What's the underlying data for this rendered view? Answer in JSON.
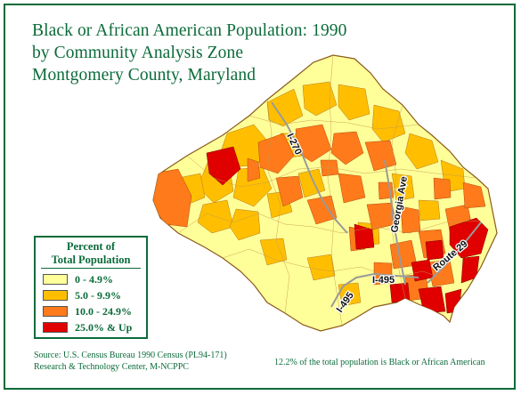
{
  "title": {
    "line1": "Black or African American Population: 1990",
    "line2": "by Community Analysis Zone",
    "line3": "Montgomery County, Maryland"
  },
  "legend": {
    "title_line1": "Percent of",
    "title_line2": "Total Population",
    "items": [
      {
        "label": "0 - 4.9%",
        "color": "#ffff99"
      },
      {
        "label": "5.0 - 9.9%",
        "color": "#ffbf00"
      },
      {
        "label": "10.0 - 24.9%",
        "color": "#ff7a1a"
      },
      {
        "label": "25.0% & Up",
        "color": "#e00000"
      }
    ]
  },
  "roads": {
    "i270": "I-270",
    "georgia": "Georgia Ave",
    "route29": "Route 29",
    "i495_east": "I-495",
    "i495_west": "I-495"
  },
  "source": {
    "line1": "Source: U.S. Census Bureau 1990 Census (PL94-171)",
    "line2": "Research & Technology Center, M-NCPPC"
  },
  "note": "12.2% of the total population is Black or African American",
  "colors": {
    "brand_green": "#0b6b3a",
    "road": "#9a9a9a",
    "boundary": "#b07a2a"
  }
}
